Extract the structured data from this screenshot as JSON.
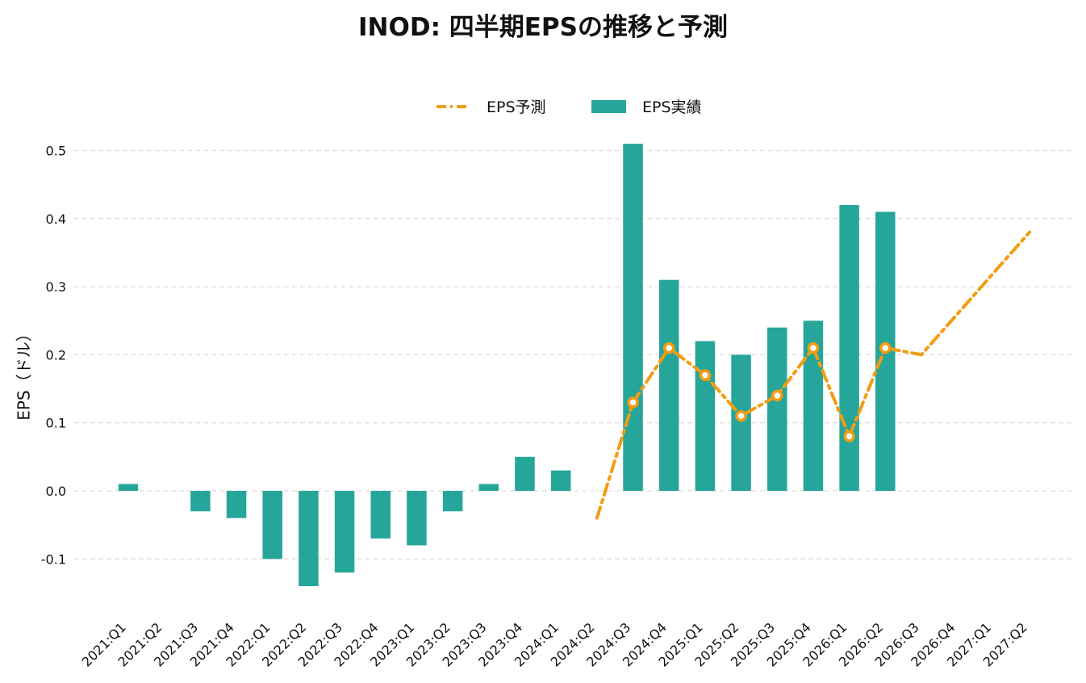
{
  "chart_data": {
    "type": "bar",
    "title": "INOD: 四半期EPSの推移と予測",
    "ylabel": "EPS（ドル）",
    "xlabel": "",
    "ylim": [
      -0.15,
      0.52
    ],
    "yticks": [
      -0.1,
      0.0,
      0.1,
      0.2,
      0.3,
      0.4,
      0.5
    ],
    "ytick_labels": [
      "-0.1",
      "0.0",
      "0.1",
      "0.2",
      "0.3",
      "0.4",
      "0.5"
    ],
    "grid": "horizontal dashed",
    "legend": {
      "placement": "top-center",
      "items": [
        "EPS予測",
        "EPS実績"
      ]
    },
    "categories": [
      "2021:Q1",
      "2021:Q2",
      "2021:Q3",
      "2021:Q4",
      "2022:Q1",
      "2022:Q2",
      "2022:Q3",
      "2022:Q4",
      "2023:Q1",
      "2023:Q2",
      "2023:Q3",
      "2023:Q4",
      "2024:Q1",
      "2024:Q2",
      "2024:Q3",
      "2024:Q4",
      "2025:Q1",
      "2025:Q2",
      "2025:Q3",
      "2025:Q4",
      "2026:Q1",
      "2026:Q2",
      "2026:Q3",
      "2026:Q4",
      "2027:Q1",
      "2027:Q2"
    ],
    "series": [
      {
        "name": "EPS実績",
        "kind": "bar",
        "color": "#26a69a",
        "values": [
          0.01,
          null,
          -0.03,
          -0.04,
          -0.1,
          -0.14,
          -0.12,
          -0.07,
          -0.08,
          -0.03,
          0.01,
          0.05,
          0.03,
          null,
          0.51,
          0.31,
          0.22,
          0.2,
          0.24,
          0.25,
          0.42,
          0.41,
          null,
          null,
          null,
          null
        ]
      },
      {
        "name": "EPS予測",
        "kind": "line",
        "color": "#f39c12",
        "values": [
          null,
          null,
          null,
          null,
          null,
          null,
          null,
          null,
          null,
          null,
          null,
          null,
          null,
          -0.04,
          0.13,
          0.21,
          0.17,
          0.11,
          0.14,
          0.21,
          0.08,
          0.21,
          0.2,
          0.26,
          0.32,
          0.38
        ],
        "markers": [
          false,
          false,
          false,
          false,
          false,
          false,
          false,
          false,
          false,
          false,
          false,
          false,
          false,
          false,
          true,
          true,
          true,
          true,
          true,
          true,
          true,
          true,
          false,
          false,
          false,
          false
        ]
      }
    ]
  }
}
